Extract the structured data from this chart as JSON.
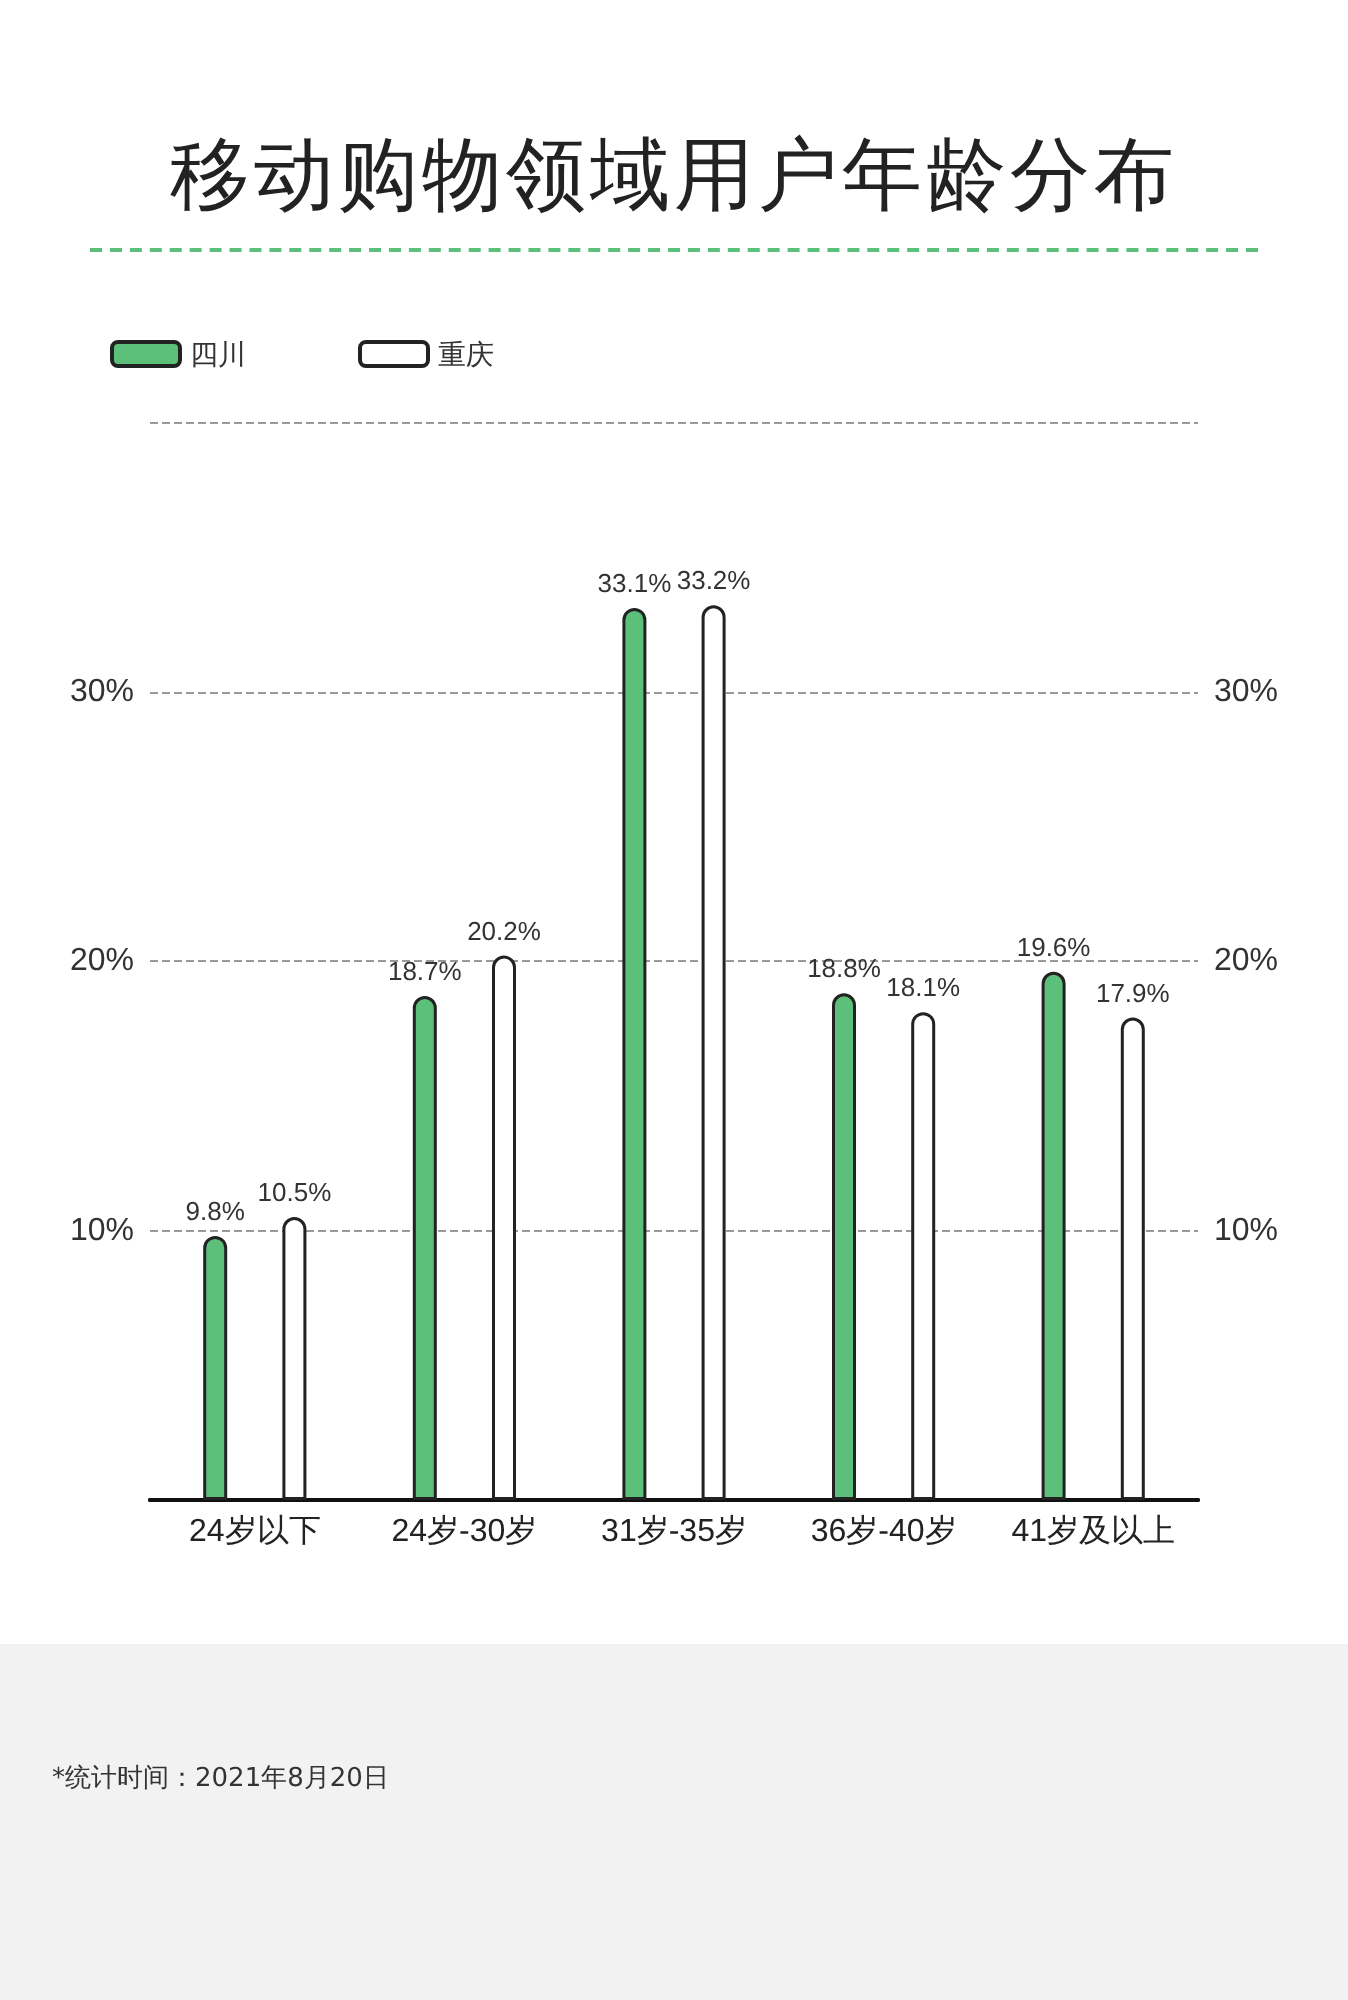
{
  "chart_data": {
    "type": "bar",
    "title": "移动购物领域用户年龄分布",
    "categories": [
      "24岁以下",
      "24岁-30岁",
      "31岁-35岁",
      "36岁-40岁",
      "41岁及以上"
    ],
    "series": [
      {
        "name": "四川",
        "color": "#5cc07a",
        "values": [
          9.8,
          18.7,
          33.1,
          18.8,
          19.6
        ],
        "value_labels": [
          "9.8%",
          "18.7%",
          "33.1%",
          "18.8%",
          "19.6%"
        ]
      },
      {
        "name": "重庆",
        "color": "#ffffff",
        "values": [
          10.5,
          20.2,
          33.2,
          18.1,
          17.9
        ],
        "value_labels": [
          "10.5%",
          "20.2%",
          "33.2%",
          "18.1%",
          "17.9%"
        ]
      }
    ],
    "ylim": [
      0,
      40
    ],
    "yticks": [
      {
        "value": 10,
        "label": "10%"
      },
      {
        "value": 20,
        "label": "20%"
      },
      {
        "value": 30,
        "label": "30%"
      },
      {
        "value": 40,
        "label": null
      }
    ],
    "y2lim": [
      0,
      40
    ],
    "y2ticks": [
      {
        "value": 10,
        "label": "10%"
      },
      {
        "value": 20,
        "label": "20%"
      },
      {
        "value": 30,
        "label": "30%"
      },
      {
        "value": 40,
        "label": null
      }
    ],
    "grid": "y",
    "legend": "top left",
    "annotations": [
      "*统计时间：2021年8月20日"
    ]
  }
}
